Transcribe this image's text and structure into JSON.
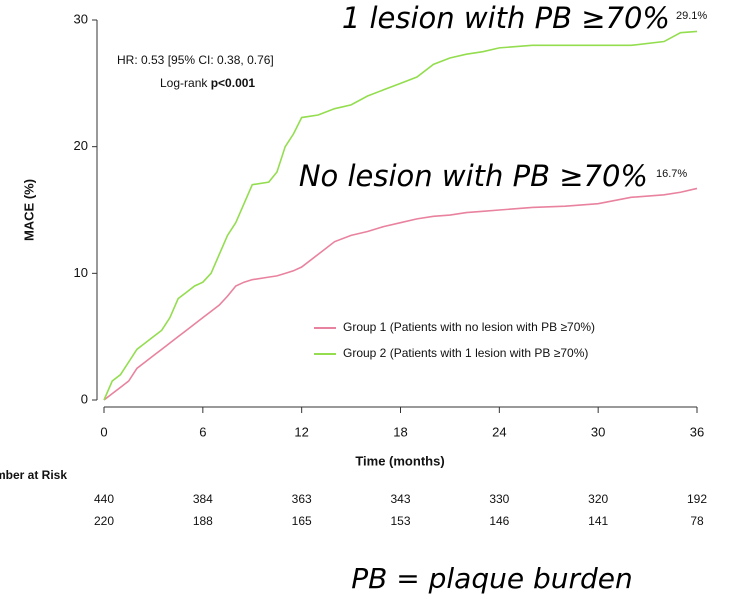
{
  "chart_data": {
    "type": "line",
    "xlabel": "Time (months)",
    "ylabel": "MACE (%)",
    "xlim": [
      0,
      36
    ],
    "ylim": [
      0,
      30
    ],
    "xticks": [
      0,
      6,
      12,
      18,
      24,
      30,
      36
    ],
    "yticks": [
      0,
      10,
      20,
      30
    ],
    "x": [
      0,
      0.5,
      1,
      1.5,
      2,
      2.5,
      3,
      3.5,
      4,
      4.5,
      5,
      5.5,
      6,
      6.5,
      7,
      7.5,
      8,
      8.5,
      9,
      10,
      10.5,
      11,
      11.5,
      12,
      13,
      14,
      15,
      16,
      17,
      18,
      19,
      20,
      21,
      22,
      23,
      24,
      26,
      28,
      30,
      32,
      34,
      35,
      36
    ],
    "series": [
      {
        "name": "Group 1 (Patients with no lesion with PB ≥70%)",
        "color": "#e9829f",
        "values": [
          0,
          0.5,
          1,
          1.5,
          2.5,
          3,
          3.5,
          4,
          4.5,
          5,
          5.5,
          6,
          6.5,
          7,
          7.5,
          8.2,
          9,
          9.3,
          9.5,
          9.7,
          9.8,
          10,
          10.2,
          10.5,
          11.5,
          12.5,
          13,
          13.3,
          13.7,
          14,
          14.3,
          14.5,
          14.6,
          14.8,
          14.9,
          15,
          15.2,
          15.3,
          15.5,
          16,
          16.2,
          16.4,
          16.7
        ]
      },
      {
        "name": "Group 2 (Patients with  1 lesion with PB ≥70%)",
        "color": "#93dd4f",
        "values": [
          0,
          1.5,
          2,
          3,
          4,
          4.5,
          5,
          5.5,
          6.5,
          8,
          8.5,
          9,
          9.3,
          10,
          11.5,
          13,
          14,
          15.5,
          17,
          17.2,
          18,
          20,
          21,
          22.3,
          22.5,
          23,
          23.3,
          24,
          24.5,
          25,
          25.5,
          26.5,
          27,
          27.3,
          27.5,
          27.8,
          28,
          28,
          28,
          28,
          28.3,
          29,
          29.1
        ]
      }
    ],
    "annotations": [
      "1 lesion with PB ≥70%",
      "29.1%",
      "No lesion with PB ≥70%",
      "16.7%",
      "HR: 0.53 [95% CI: 0.38, 0.76]",
      "PB = plaque burden"
    ],
    "logrank": {
      "label": "Log-rank",
      "p": "p<0.001"
    },
    "legend": "lower right",
    "risk_table": {
      "label": "Number at Risk",
      "rows": [
        [
          440,
          384,
          363,
          343,
          330,
          320,
          192
        ],
        [
          220,
          188,
          165,
          153,
          146,
          141,
          78
        ]
      ]
    }
  }
}
